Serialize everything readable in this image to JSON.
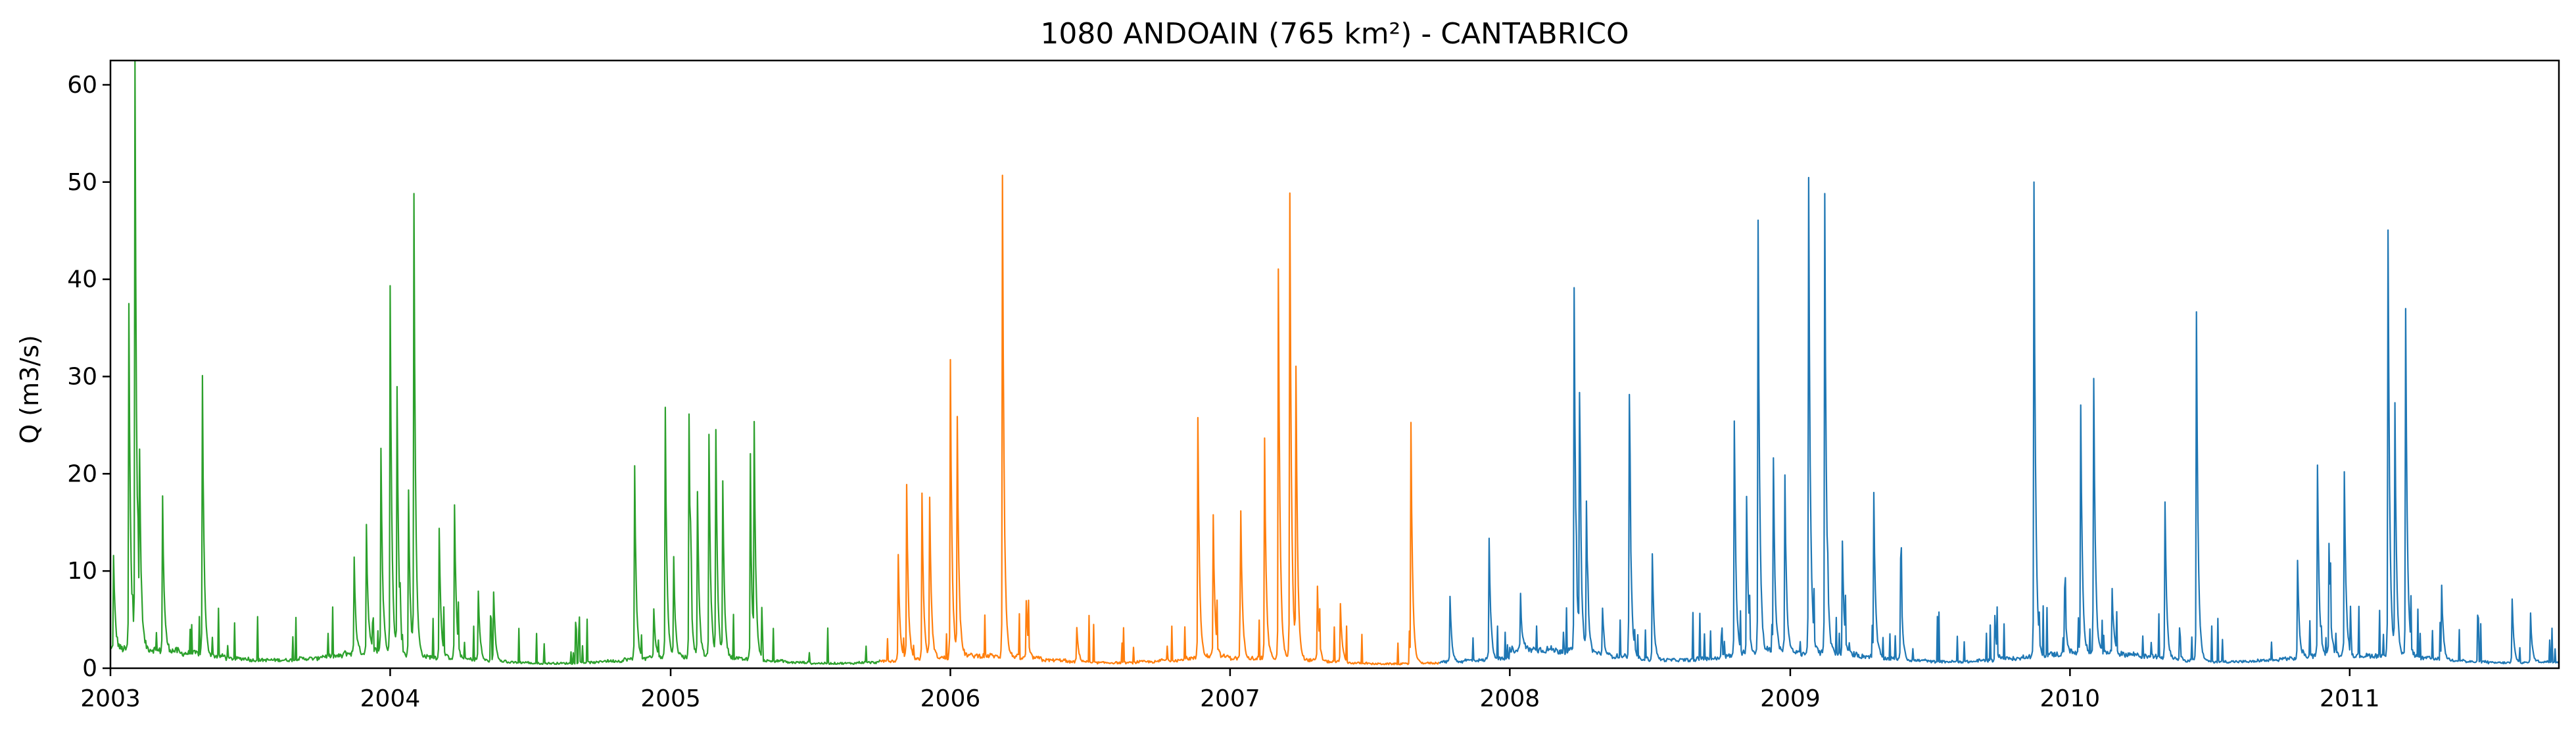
{
  "chart_data": {
    "type": "line",
    "title": "1080 ANDOAIN (765 km²) - CANTABRICO",
    "xlabel": "",
    "ylabel": "Q (m3/s)",
    "xlim": [
      "2003-01-01",
      "2011-10-01"
    ],
    "ylim": [
      0,
      62.5
    ],
    "grid": false,
    "legend": "none",
    "x_ticks": [
      "2003",
      "2004",
      "2005",
      "2006",
      "2007",
      "2008",
      "2009",
      "2010",
      "2011"
    ],
    "y_ticks": [
      0,
      10,
      20,
      30,
      40,
      50,
      60
    ],
    "baseline": {
      "2003": 1.5,
      "2004": 0.9,
      "2005": 0.9,
      "2006": 1.0,
      "2007": 0.8,
      "2008": 1.5,
      "2009": 1.2,
      "2010": 1.2,
      "2011": 1.0
    },
    "series": [
      {
        "color": "#2ca02c",
        "start": "2003-01-01",
        "end": "2005-10-01",
        "peaks": [
          [
            "2003-01-05",
            9.5
          ],
          [
            "2003-01-25",
            35.5
          ],
          [
            "2003-02-02",
            59.8
          ],
          [
            "2003-02-08",
            16.5
          ],
          [
            "2003-03-10",
            15.8
          ],
          [
            "2003-05-01",
            29.0
          ],
          [
            "2003-11-15",
            10.0
          ],
          [
            "2003-12-01",
            13.0
          ],
          [
            "2003-12-20",
            21.0
          ],
          [
            "2004-01-01",
            38.0
          ],
          [
            "2004-01-10",
            27.0
          ],
          [
            "2004-01-25",
            17.0
          ],
          [
            "2004-02-01",
            47.0
          ],
          [
            "2004-03-05",
            13.2
          ],
          [
            "2004-03-25",
            15.8
          ],
          [
            "2004-04-25",
            7.0
          ],
          [
            "2004-05-15",
            7.2
          ],
          [
            "2004-11-15",
            20.0
          ],
          [
            "2004-12-10",
            5.0
          ],
          [
            "2004-12-25",
            25.8
          ],
          [
            "2005-01-05",
            10.0
          ],
          [
            "2005-01-25",
            24.8
          ],
          [
            "2005-02-05",
            17.0
          ],
          [
            "2005-02-20",
            22.8
          ],
          [
            "2005-03-01",
            23.0
          ],
          [
            "2005-03-10",
            18.0
          ],
          [
            "2005-04-15",
            17.5
          ],
          [
            "2005-04-20",
            22.5
          ]
        ]
      },
      {
        "color": "#ff7f0e",
        "start": "2005-10-01",
        "end": "2007-10-01",
        "peaks": [
          [
            "2005-10-25",
            11.0
          ],
          [
            "2005-11-05",
            18.0
          ],
          [
            "2005-11-25",
            17.0
          ],
          [
            "2005-12-05",
            16.5
          ],
          [
            "2006-01-01",
            30.5
          ],
          [
            "2006-01-10",
            24.0
          ],
          [
            "2006-03-10",
            49.5
          ],
          [
            "2006-04-10",
            6.0
          ],
          [
            "2006-06-15",
            3.5
          ],
          [
            "2006-11-20",
            24.8
          ],
          [
            "2006-12-10",
            14.5
          ],
          [
            "2007-01-15",
            15.0
          ],
          [
            "2007-02-15",
            22.5
          ],
          [
            "2007-03-05",
            40.0
          ],
          [
            "2007-03-20",
            48.0
          ],
          [
            "2007-03-28",
            28.8
          ],
          [
            "2007-04-25",
            7.5
          ],
          [
            "2007-05-25",
            6.0
          ],
          [
            "2007-08-25",
            24.8
          ]
        ]
      },
      {
        "color": "#1f77b4",
        "start": "2007-10-01",
        "end": "2011-10-01",
        "peaks": [
          [
            "2007-10-15",
            6.8
          ],
          [
            "2007-12-05",
            12.5
          ],
          [
            "2008-01-15",
            5.5
          ],
          [
            "2008-03-25",
            37.0
          ],
          [
            "2008-04-01",
            25.0
          ],
          [
            "2008-04-10",
            15.0
          ],
          [
            "2008-05-01",
            4.8
          ],
          [
            "2008-06-05",
            27.2
          ],
          [
            "2008-07-05",
            11.0
          ],
          [
            "2008-10-20",
            24.0
          ],
          [
            "2008-11-05",
            16.0
          ],
          [
            "2008-11-20",
            44.5
          ],
          [
            "2008-12-10",
            19.5
          ],
          [
            "2008-12-25",
            18.0
          ],
          [
            "2009-01-25",
            48.8
          ],
          [
            "2009-02-15",
            47.5
          ],
          [
            "2009-03-10",
            11.5
          ],
          [
            "2009-04-20",
            16.8
          ],
          [
            "2009-05-25",
            10.3
          ],
          [
            "2009-09-25",
            4.5
          ],
          [
            "2009-11-15",
            49.0
          ],
          [
            "2009-12-25",
            7.0
          ],
          [
            "2010-01-15",
            25.8
          ],
          [
            "2010-02-01",
            28.2
          ],
          [
            "2010-02-25",
            6.5
          ],
          [
            "2010-05-05",
            16.2
          ],
          [
            "2010-06-15",
            35.8
          ],
          [
            "2010-10-25",
            10.0
          ],
          [
            "2010-11-20",
            19.5
          ],
          [
            "2010-12-05",
            11.5
          ],
          [
            "2010-12-25",
            19.0
          ],
          [
            "2011-02-20",
            43.8
          ],
          [
            "2011-03-01",
            25.5
          ],
          [
            "2011-03-15",
            35.8
          ],
          [
            "2011-05-01",
            7.8
          ],
          [
            "2011-08-01",
            6.5
          ],
          [
            "2011-08-25",
            5.0
          ]
        ]
      }
    ]
  }
}
